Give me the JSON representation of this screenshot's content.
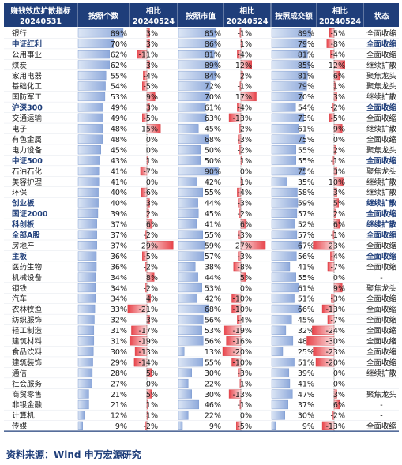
{
  "chart_data": {
    "type": "table",
    "headers": [
      {
        "line1": "赚钱效应扩散指标",
        "line2": "20240531"
      },
      {
        "line1": "按照个数",
        "line2": ""
      },
      {
        "line1": "相比",
        "line2": "20240524"
      },
      {
        "line1": "按照市值",
        "line2": ""
      },
      {
        "line1": "相比",
        "line2": "20240524"
      },
      {
        "line1": "按照成交额",
        "line2": ""
      },
      {
        "line1": "相比",
        "line2": "20240524"
      },
      {
        "line1": "状态",
        "line2": ""
      }
    ],
    "columns": [
      "name",
      "count_pct",
      "count_chg",
      "mv_pct",
      "mv_chg",
      "amt_pct",
      "amt_chg",
      "status"
    ],
    "rows": [
      {
        "name": "银行",
        "bold": false,
        "count_pct": 89,
        "count_chg": 3,
        "mv_pct": 85,
        "mv_chg": -1,
        "amt_pct": 89,
        "amt_chg": -5,
        "status": "全面收缩"
      },
      {
        "name": "中证红利",
        "bold": true,
        "count_pct": 70,
        "count_chg": 3,
        "mv_pct": 86,
        "mv_chg": 1,
        "amt_pct": 79,
        "amt_chg": -8,
        "status": "全面收缩"
      },
      {
        "name": "公用事业",
        "bold": false,
        "count_pct": 62,
        "count_chg": -11,
        "mv_pct": 81,
        "mv_chg": -4,
        "amt_pct": 81,
        "amt_chg": -4,
        "status": "全面收缩"
      },
      {
        "name": "煤炭",
        "bold": false,
        "count_pct": 62,
        "count_chg": 3,
        "mv_pct": 89,
        "mv_chg": 12,
        "amt_pct": 85,
        "amt_chg": 12,
        "status": "继续扩散"
      },
      {
        "name": "家用电器",
        "bold": false,
        "count_pct": 55,
        "count_chg": -4,
        "mv_pct": 84,
        "mv_chg": 2,
        "amt_pct": 81,
        "amt_chg": 6,
        "status": "聚焦龙头"
      },
      {
        "name": "基础化工",
        "bold": false,
        "count_pct": 54,
        "count_chg": -5,
        "mv_pct": 72,
        "mv_chg": -1,
        "amt_pct": 79,
        "amt_chg": 1,
        "status": "聚焦龙头"
      },
      {
        "name": "国防军工",
        "bold": false,
        "count_pct": 53,
        "count_chg": 9,
        "mv_pct": 70,
        "mv_chg": 17,
        "amt_pct": 70,
        "amt_chg": 3,
        "status": "继续扩散"
      },
      {
        "name": "沪深300",
        "bold": true,
        "count_pct": 49,
        "count_chg": 3,
        "mv_pct": 61,
        "mv_chg": -4,
        "amt_pct": 54,
        "amt_chg": -2,
        "status": "全面收缩"
      },
      {
        "name": "交通运输",
        "bold": false,
        "count_pct": 49,
        "count_chg": -5,
        "mv_pct": 63,
        "mv_chg": -13,
        "amt_pct": 73,
        "amt_chg": -5,
        "status": "全面收缩"
      },
      {
        "name": "电子",
        "bold": false,
        "count_pct": 48,
        "count_chg": 15,
        "mv_pct": 45,
        "mv_chg": -2,
        "amt_pct": 61,
        "amt_chg": 9,
        "status": "继续扩散"
      },
      {
        "name": "有色金属",
        "bold": false,
        "count_pct": 48,
        "count_chg": 0,
        "mv_pct": 68,
        "mv_chg": -3,
        "amt_pct": 75,
        "amt_chg": 0,
        "status": "全面收缩"
      },
      {
        "name": "电力设备",
        "bold": false,
        "count_pct": 45,
        "count_chg": 0,
        "mv_pct": 50,
        "mv_chg": -2,
        "amt_pct": 55,
        "amt_chg": 2,
        "status": "聚焦龙头"
      },
      {
        "name": "中证500",
        "bold": true,
        "count_pct": 43,
        "count_chg": 1,
        "mv_pct": 50,
        "mv_chg": 1,
        "amt_pct": 55,
        "amt_chg": -1,
        "status": "全面收缩"
      },
      {
        "name": "石油石化",
        "bold": false,
        "count_pct": 41,
        "count_chg": -7,
        "mv_pct": 90,
        "mv_chg": 0,
        "amt_pct": 75,
        "amt_chg": 3,
        "status": "聚焦龙头"
      },
      {
        "name": "美容护理",
        "bold": false,
        "count_pct": 41,
        "count_chg": 0,
        "mv_pct": 42,
        "mv_chg": 1,
        "amt_pct": 35,
        "amt_chg": 10,
        "status": "继续扩散"
      },
      {
        "name": "环保",
        "bold": false,
        "count_pct": 40,
        "count_chg": -6,
        "mv_pct": 55,
        "mv_chg": -4,
        "amt_pct": 58,
        "amt_chg": 3,
        "status": "继续扩散"
      },
      {
        "name": "创业板",
        "bold": true,
        "count_pct": 40,
        "count_chg": 3,
        "mv_pct": 44,
        "mv_chg": -3,
        "amt_pct": 59,
        "amt_chg": 5,
        "status": "继续扩散"
      },
      {
        "name": "国证2000",
        "bold": true,
        "count_pct": 39,
        "count_chg": 2,
        "mv_pct": 45,
        "mv_chg": -2,
        "amt_pct": 57,
        "amt_chg": 2,
        "status": "全面收缩"
      },
      {
        "name": "科创板",
        "bold": true,
        "count_pct": 37,
        "count_chg": 6,
        "mv_pct": 41,
        "mv_chg": 6,
        "amt_pct": 52,
        "amt_chg": 6,
        "status": "继续扩散"
      },
      {
        "name": "全部A股",
        "bold": true,
        "count_pct": 37,
        "count_chg": -2,
        "mv_pct": 55,
        "mv_chg": -3,
        "amt_pct": 57,
        "amt_chg": -1,
        "status": "全面收缩"
      },
      {
        "name": "房地产",
        "bold": false,
        "count_pct": 37,
        "count_chg": 29,
        "mv_pct": 59,
        "mv_chg": 27,
        "amt_pct": 67,
        "amt_chg": -23,
        "status": "全面收缩"
      },
      {
        "name": "主板",
        "bold": true,
        "count_pct": 36,
        "count_chg": -5,
        "mv_pct": 57,
        "mv_chg": -3,
        "amt_pct": 56,
        "amt_chg": -4,
        "status": "全面收缩"
      },
      {
        "name": "医药生物",
        "bold": false,
        "count_pct": 36,
        "count_chg": -2,
        "mv_pct": 38,
        "mv_chg": -8,
        "amt_pct": 41,
        "amt_chg": -7,
        "status": "全面收缩"
      },
      {
        "name": "机械设备",
        "bold": false,
        "count_pct": 34,
        "count_chg": 8,
        "mv_pct": 44,
        "mv_chg": 5,
        "amt_pct": 55,
        "amt_chg": 0,
        "status": "-"
      },
      {
        "name": "钢铁",
        "bold": false,
        "count_pct": 34,
        "count_chg": -2,
        "mv_pct": 53,
        "mv_chg": 0,
        "amt_pct": 61,
        "amt_chg": 9,
        "status": "聚焦龙头"
      },
      {
        "name": "汽车",
        "bold": false,
        "count_pct": 34,
        "count_chg": 4,
        "mv_pct": 42,
        "mv_chg": -10,
        "amt_pct": 51,
        "amt_chg": -3,
        "status": "全面收缩"
      },
      {
        "name": "农林牧渔",
        "bold": false,
        "count_pct": 33,
        "count_chg": -21,
        "mv_pct": 68,
        "mv_chg": -10,
        "amt_pct": 66,
        "amt_chg": -13,
        "status": "全面收缩"
      },
      {
        "name": "纺织服饰",
        "bold": false,
        "count_pct": 32,
        "count_chg": 3,
        "mv_pct": 56,
        "mv_chg": -4,
        "amt_pct": 45,
        "amt_chg": -7,
        "status": "全面收缩"
      },
      {
        "name": "轻工制造",
        "bold": false,
        "count_pct": 31,
        "count_chg": -17,
        "mv_pct": 53,
        "mv_chg": -19,
        "amt_pct": 32,
        "amt_chg": -24,
        "status": "全面收缩"
      },
      {
        "name": "建筑材料",
        "bold": false,
        "count_pct": 31,
        "count_chg": -19,
        "mv_pct": 56,
        "mv_chg": -16,
        "amt_pct": 48,
        "amt_chg": -30,
        "status": "全面收缩"
      },
      {
        "name": "食品饮料",
        "bold": false,
        "count_pct": 30,
        "count_chg": -13,
        "mv_pct": 13,
        "mv_chg": -20,
        "amt_pct": 25,
        "amt_chg": -23,
        "status": "全面收缩"
      },
      {
        "name": "建筑装饰",
        "bold": false,
        "count_pct": 29,
        "count_chg": -14,
        "mv_pct": 55,
        "mv_chg": -10,
        "amt_pct": 51,
        "amt_chg": -20,
        "status": "全面收缩"
      },
      {
        "name": "通信",
        "bold": false,
        "count_pct": 28,
        "count_chg": 5,
        "mv_pct": 30,
        "mv_chg": -3,
        "amt_pct": 39,
        "amt_chg": 0,
        "status": "继续扩散"
      },
      {
        "name": "社会服务",
        "bold": false,
        "count_pct": 27,
        "count_chg": 0,
        "mv_pct": 22,
        "mv_chg": -1,
        "amt_pct": 41,
        "amt_chg": 0,
        "status": "-"
      },
      {
        "name": "商贸零售",
        "bold": false,
        "count_pct": 21,
        "count_chg": 5,
        "mv_pct": 30,
        "mv_chg": -13,
        "amt_pct": 47,
        "amt_chg": 3,
        "status": "聚焦龙头"
      },
      {
        "name": "非银金融",
        "bold": false,
        "count_pct": 21,
        "count_chg": 1,
        "mv_pct": 46,
        "mv_chg": -1,
        "amt_pct": 37,
        "amt_chg": 6,
        "status": "-"
      },
      {
        "name": "计算机",
        "bold": false,
        "count_pct": 12,
        "count_chg": 1,
        "mv_pct": 22,
        "mv_chg": 0,
        "amt_pct": 30,
        "amt_chg": -2,
        "status": "-"
      },
      {
        "name": "传媒",
        "bold": false,
        "count_pct": 9,
        "count_chg": -2,
        "mv_pct": 9,
        "mv_chg": -5,
        "amt_pct": 9,
        "amt_chg": -13,
        "status": "全面收缩"
      }
    ]
  },
  "source": "资料来源：Wind  申万宏源研究",
  "colors": {
    "header_bg": "#1f3e7a",
    "header_text": "#ffffff",
    "bar_blue": "#8ea9db",
    "bar_blue_light": "#dce6f5",
    "bar_red": "#e8434a",
    "bar_red_light": "#fbe2e3",
    "text": "#1a1a1a",
    "bold_text": "#1f3e7a"
  }
}
